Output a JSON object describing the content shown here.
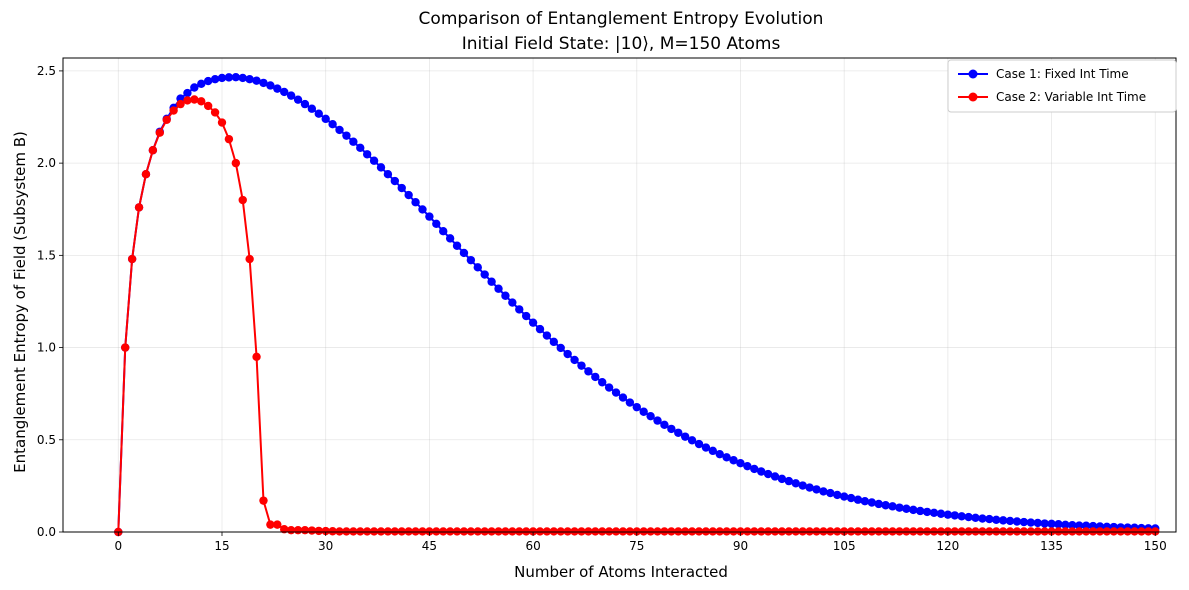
{
  "chart_data": {
    "type": "line",
    "title": "Comparison of Entanglement Entropy Evolution",
    "subtitle": "Initial Field State: |10⟩, M=150 Atoms",
    "xlabel": "Number of Atoms Interacted",
    "ylabel": "Entanglement Entropy of Field (Subsystem B)",
    "xlim": [
      -8,
      153
    ],
    "ylim": [
      0,
      2.57
    ],
    "xticks": [
      0,
      15,
      30,
      45,
      60,
      75,
      90,
      105,
      120,
      135,
      150
    ],
    "yticks": [
      0.0,
      0.5,
      1.0,
      1.5,
      2.0,
      2.5
    ],
    "ytick_labels": [
      "0.0",
      "0.5",
      "1.0",
      "1.5",
      "2.0",
      "2.5"
    ],
    "grid": true,
    "legend_position": "top-right",
    "series": [
      {
        "name": "Case 1: Fixed Int Time",
        "color": "#0000ff",
        "marker": "circle",
        "x_start": 0,
        "x_step": 1,
        "values": [
          0,
          1.0,
          1.48,
          1.76,
          1.94,
          2.07,
          2.17,
          2.24,
          2.3,
          2.35,
          2.38,
          2.41,
          2.43,
          2.445,
          2.455,
          2.462,
          2.465,
          2.466,
          2.462,
          2.455,
          2.447,
          2.435,
          2.421,
          2.404,
          2.386,
          2.366,
          2.344,
          2.32,
          2.295,
          2.268,
          2.24,
          2.211,
          2.18,
          2.149,
          2.116,
          2.083,
          2.048,
          2.013,
          1.977,
          1.94,
          1.903,
          1.865,
          1.827,
          1.788,
          1.749,
          1.71,
          1.671,
          1.631,
          1.592,
          1.552,
          1.513,
          1.474,
          1.435,
          1.396,
          1.357,
          1.319,
          1.281,
          1.244,
          1.207,
          1.171,
          1.135,
          1.1,
          1.065,
          1.031,
          0.998,
          0.965,
          0.933,
          0.902,
          0.871,
          0.841,
          0.812,
          0.783,
          0.756,
          0.729,
          0.702,
          0.677,
          0.652,
          0.628,
          0.604,
          0.581,
          0.559,
          0.538,
          0.517,
          0.497,
          0.477,
          0.458,
          0.44,
          0.422,
          0.405,
          0.389,
          0.373,
          0.357,
          0.342,
          0.328,
          0.314,
          0.301,
          0.288,
          0.276,
          0.264,
          0.252,
          0.241,
          0.231,
          0.22,
          0.211,
          0.201,
          0.192,
          0.184,
          0.175,
          0.167,
          0.16,
          0.152,
          0.145,
          0.139,
          0.132,
          0.126,
          0.12,
          0.114,
          0.109,
          0.104,
          0.099,
          0.094,
          0.09,
          0.085,
          0.081,
          0.077,
          0.073,
          0.07,
          0.066,
          0.063,
          0.06,
          0.057,
          0.054,
          0.051,
          0.049,
          0.046,
          0.044,
          0.042,
          0.039,
          0.037,
          0.035,
          0.034,
          0.032,
          0.03,
          0.028,
          0.027,
          0.025,
          0.024,
          0.023,
          0.021,
          0.02,
          0.019
        ]
      },
      {
        "name": "Case 2: Variable Int Time",
        "color": "#ff0000",
        "marker": "circle",
        "x_start": 0,
        "x_step": 1,
        "values": [
          0,
          1.0,
          1.48,
          1.76,
          1.94,
          2.07,
          2.165,
          2.235,
          2.285,
          2.32,
          2.34,
          2.345,
          2.335,
          2.31,
          2.275,
          2.22,
          2.13,
          2.0,
          1.8,
          1.48,
          0.95,
          0.17,
          0.04,
          0.04,
          0.015,
          0.01,
          0.01,
          0.01,
          0.008,
          0.006,
          0.005,
          0.004,
          0.003,
          0.003,
          0.003,
          0.003,
          0.003,
          0.003,
          0.003,
          0.003,
          0.003,
          0.003,
          0.003,
          0.003,
          0.003,
          0.003,
          0.003,
          0.003,
          0.003,
          0.003,
          0.003,
          0.003,
          0.003,
          0.003,
          0.003,
          0.003,
          0.003,
          0.003,
          0.003,
          0.003,
          0.003,
          0.003,
          0.003,
          0.003,
          0.003,
          0.003,
          0.003,
          0.003,
          0.003,
          0.003,
          0.003,
          0.003,
          0.003,
          0.003,
          0.003,
          0.003,
          0.003,
          0.003,
          0.003,
          0.003,
          0.003,
          0.003,
          0.003,
          0.003,
          0.003,
          0.003,
          0.003,
          0.003,
          0.003,
          0.003,
          0.003,
          0.003,
          0.003,
          0.003,
          0.003,
          0.003,
          0.003,
          0.003,
          0.003,
          0.003,
          0.003,
          0.003,
          0.003,
          0.003,
          0.003,
          0.003,
          0.003,
          0.003,
          0.003,
          0.003,
          0.003,
          0.003,
          0.003,
          0.003,
          0.003,
          0.003,
          0.003,
          0.003,
          0.003,
          0.003,
          0.003,
          0.003,
          0.003,
          0.003,
          0.003,
          0.003,
          0.003,
          0.003,
          0.003,
          0.003,
          0.003,
          0.003,
          0.003,
          0.003,
          0.003,
          0.003,
          0.003,
          0.003,
          0.003,
          0.003,
          0.003,
          0.003,
          0.003,
          0.003,
          0.003,
          0.003,
          0.003,
          0.003,
          0.003,
          0.003,
          0.003
        ]
      }
    ]
  }
}
